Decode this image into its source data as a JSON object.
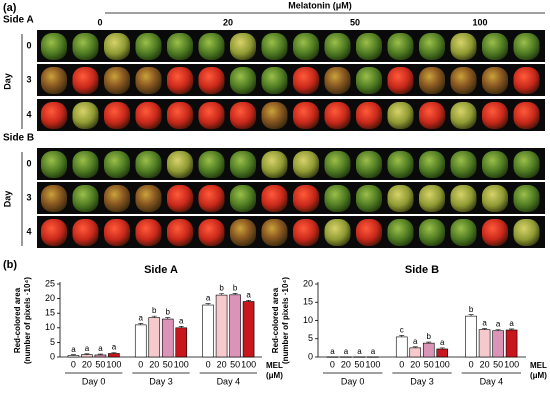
{
  "figure": {
    "panel_a": "(a)",
    "panel_b": "(b)",
    "header": "Melatonin (μM)",
    "doses": [
      "0",
      "20",
      "50",
      "100"
    ],
    "sides": [
      {
        "label": "Side A",
        "day_label": "Day",
        "days": [
          "0",
          "3",
          "4"
        ]
      },
      {
        "label": "Side B",
        "day_label": "Day",
        "days": [
          "0",
          "3",
          "4"
        ]
      }
    ]
  },
  "chart_data": [
    {
      "type": "bar",
      "title": "Side A",
      "ylabel": [
        "Red-colored area",
        "(number of pixels ·10⁴)"
      ],
      "xlabel": [
        "MEL",
        "(μM)"
      ],
      "categories": [
        "Day 0",
        "Day 3",
        "Day 4"
      ],
      "ylim": [
        0,
        25
      ],
      "yticks": [
        0,
        5,
        10,
        15,
        20,
        25
      ],
      "series": [
        {
          "name": "0",
          "color": "#ffffff",
          "values": [
            0.5,
            11,
            17.8
          ],
          "errors": [
            0.3,
            0.5,
            0.5
          ],
          "letters": [
            "a",
            "a",
            "a"
          ]
        },
        {
          "name": "20",
          "color": "#f6c9cc",
          "values": [
            0.8,
            13.5,
            21.2
          ],
          "errors": [
            0.3,
            0.5,
            0.5
          ],
          "letters": [
            "a",
            "b",
            "b"
          ]
        },
        {
          "name": "50",
          "color": "#dc93b8",
          "values": [
            0.7,
            13,
            21.3
          ],
          "errors": [
            0.3,
            0.5,
            0.5
          ],
          "letters": [
            "a",
            "b",
            "b"
          ]
        },
        {
          "name": "100",
          "color": "#c8161d",
          "values": [
            1.2,
            10,
            19
          ],
          "errors": [
            0.3,
            0.5,
            0.4
          ],
          "letters": [
            "a",
            "a",
            "a"
          ]
        }
      ]
    },
    {
      "type": "bar",
      "title": "Side B",
      "ylabel": [
        "Red-colored area",
        "(number of pixels ·10⁴)"
      ],
      "xlabel": [
        "MEL",
        "(μM)"
      ],
      "categories": [
        "Day 0",
        "Day 3",
        "Day 4"
      ],
      "ylim": [
        0,
        20
      ],
      "yticks": [
        0,
        5,
        10,
        15,
        20
      ],
      "series": [
        {
          "name": "0",
          "color": "#ffffff",
          "values": [
            0.05,
            5.5,
            11.2
          ],
          "errors": [
            0.02,
            0.4,
            0.4
          ],
          "letters": [
            "a",
            "c",
            "b"
          ]
        },
        {
          "name": "20",
          "color": "#f6c9cc",
          "values": [
            0.05,
            2.5,
            7.5
          ],
          "errors": [
            0.02,
            0.3,
            0.3
          ],
          "letters": [
            "a",
            "a",
            "a"
          ]
        },
        {
          "name": "50",
          "color": "#dc93b8",
          "values": [
            0.05,
            3.8,
            7.2
          ],
          "errors": [
            0.02,
            0.3,
            0.3
          ],
          "letters": [
            "a",
            "b",
            "a"
          ]
        },
        {
          "name": "100",
          "color": "#c8161d",
          "values": [
            0.05,
            2.2,
            7.4
          ],
          "errors": [
            0.02,
            0.3,
            0.3
          ],
          "letters": [
            "a",
            "a",
            "a"
          ]
        }
      ]
    }
  ]
}
